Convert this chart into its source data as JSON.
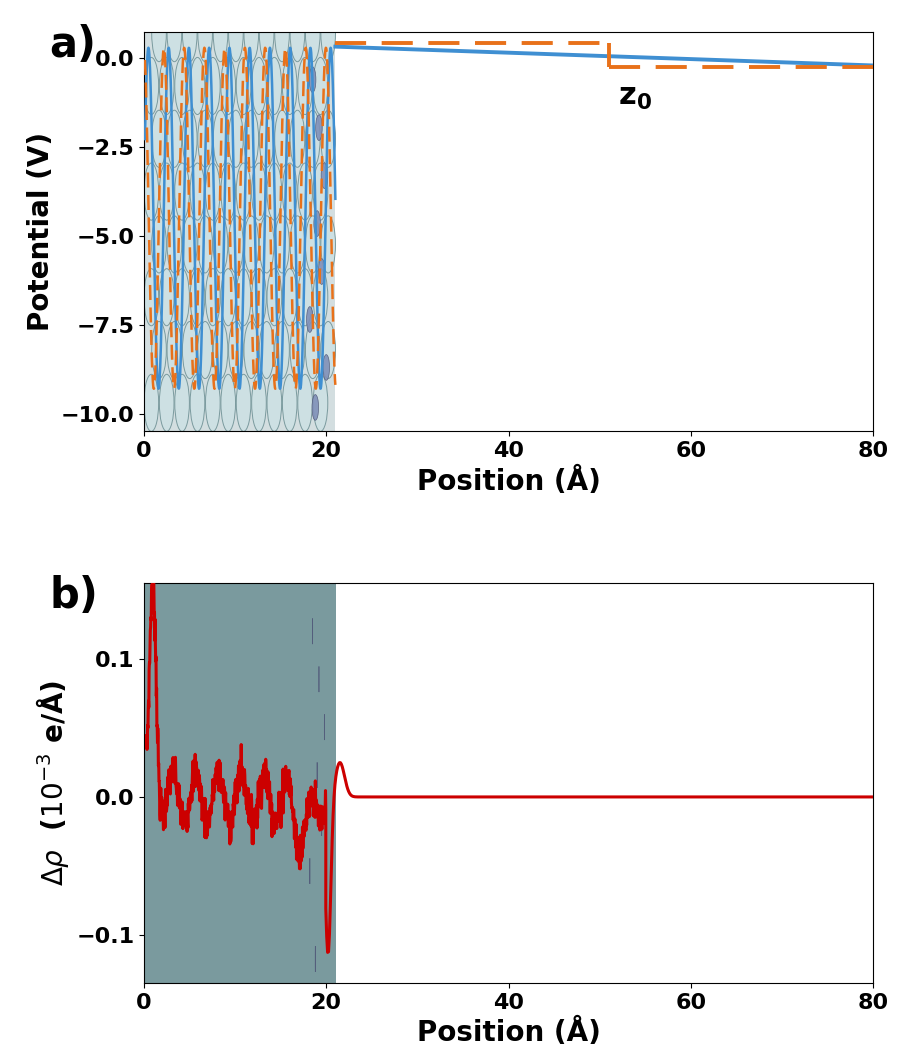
{
  "fig_width": 9.0,
  "fig_height": 10.57,
  "panel_a": {
    "xlabel": "Position (Å)",
    "ylabel": "Potential (V)",
    "xlim": [
      0,
      80
    ],
    "ylim": [
      -10.5,
      0.75
    ],
    "yticks": [
      0.0,
      -2.5,
      -5.0,
      -7.5,
      -10.0
    ],
    "xticks": [
      0,
      20,
      40,
      60,
      80
    ],
    "label": "a)",
    "blue_line_color": "#3f8fd2",
    "orange_dashed_color": "#e8711a",
    "blue_solid_start_x": 21.0,
    "blue_solid_start_y": 0.33,
    "blue_solid_end_x": 80.0,
    "blue_solid_end_y": -0.2,
    "orange_dashed_segments": [
      [
        [
          21.0,
          0.43
        ],
        [
          51.0,
          0.43
        ]
      ],
      [
        [
          51.0,
          0.43
        ],
        [
          51.0,
          -0.23
        ]
      ],
      [
        [
          51.0,
          -0.23
        ],
        [
          80.0,
          -0.23
        ]
      ]
    ],
    "z0_x": 52.0,
    "z0_y": -0.7,
    "atom_region_xmax": 21.0
  },
  "panel_b": {
    "xlabel": "Position (Å)",
    "ylabel": "Δρ  (10⁻³ e/Å)",
    "xlim": [
      0,
      80
    ],
    "ylim": [
      -0.135,
      0.155
    ],
    "yticks": [
      -0.1,
      0.0,
      0.1
    ],
    "xticks": [
      0,
      20,
      40,
      60,
      80
    ],
    "label": "b)",
    "red_line_color": "#cc0000",
    "atom_region_xmax": 21.0
  },
  "atom_bg_color": "#b0c4c8",
  "atom_circle_facecolor": "#cde0e3",
  "atom_circle_edgecolor": "#7a9a9e",
  "small_atom_facecolor": "#8090b8",
  "small_atom_edgecolor": "#505878",
  "label_fontsize": 30,
  "axis_label_fontsize": 20,
  "tick_fontsize": 16
}
